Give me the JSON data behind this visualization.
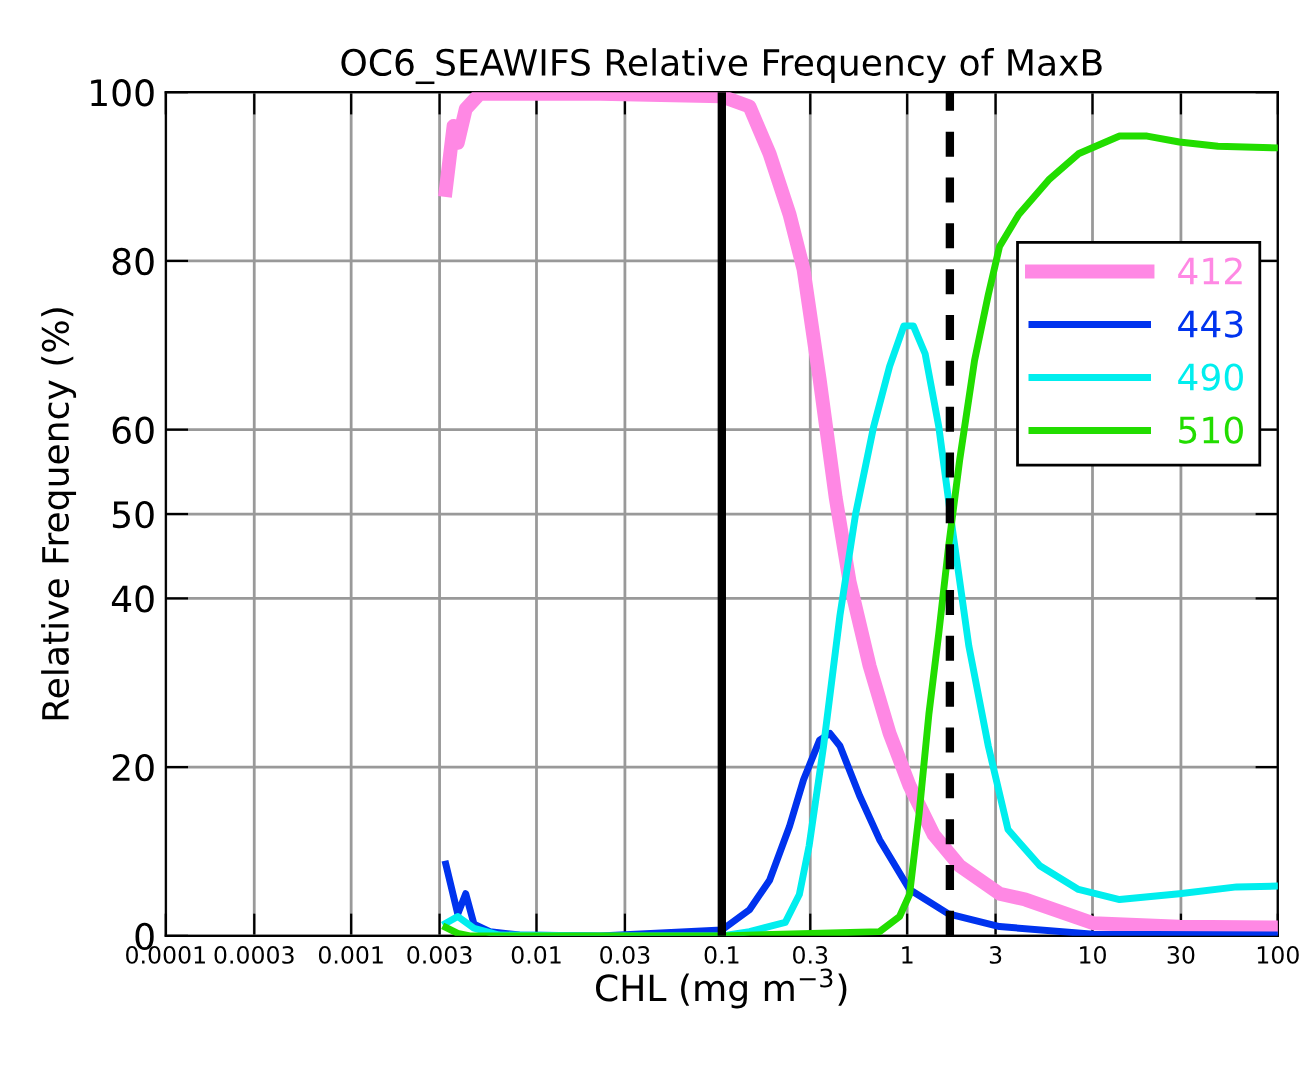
{
  "chart_data": {
    "type": "line",
    "title": "OC6_SEAWIFS Relative Frequency of MaxB",
    "xlabel": "CHL (mg m$^{−3}$)",
    "ylabel": "Relative Frequency (%)",
    "log": "x",
    "xlim": [
      0.0001,
      100
    ],
    "xticks": [
      0.0001,
      0.0003,
      0.001,
      0.003,
      0.01,
      0.03,
      0.1,
      0.3,
      1,
      3,
      10,
      30,
      100
    ],
    "ylim": [
      0,
      100
    ],
    "yticks": [
      0,
      20,
      40,
      50,
      60,
      80,
      100
    ],
    "grid": true,
    "legend": "right",
    "line_style": "solid",
    "ref_lines": [
      {
        "axis": "x",
        "value": 0.1,
        "color": "#000000",
        "line_style": "solid"
      },
      {
        "axis": "x",
        "value": 1.7,
        "color": "#000000",
        "line_style": "dashed"
      }
    ],
    "series": [
      {
        "name": "412",
        "color": "#ff88e4",
        "x": [
          0.00324,
          0.00357,
          0.00376,
          0.00415,
          0.00494,
          0.0063,
          0.022,
          0.1,
          0.141,
          0.181,
          0.232,
          0.276,
          0.337,
          0.411,
          0.489,
          0.627,
          0.804,
          1.03,
          1.39,
          1.92,
          3.15,
          4.35,
          10.1,
          29.4,
          100
        ],
        "values": [
          88.4,
          96,
          94,
          98,
          99.8,
          99.8,
          99.8,
          99.5,
          98.3,
          92.7,
          85.5,
          79,
          66,
          52,
          42,
          32,
          24,
          17.8,
          12,
          8.3,
          5,
          4.3,
          1.5,
          1.1,
          1.0
        ]
      },
      {
        "name": "443",
        "color": "#0033ee",
        "x": [
          0.00324,
          0.00376,
          0.00415,
          0.0046,
          0.0056,
          0.0081,
          0.022,
          0.1,
          0.141,
          0.181,
          0.232,
          0.276,
          0.337,
          0.383,
          0.434,
          0.554,
          0.71,
          1.03,
          1.67,
          3.15,
          10.1,
          100
        ],
        "values": [
          8.5,
          2.6,
          5,
          1.4,
          0.5,
          0.1,
          0,
          0.7,
          3.1,
          6.6,
          13,
          18.5,
          23.2,
          24,
          22.5,
          16.6,
          11.4,
          5.5,
          2.6,
          1.1,
          0.2,
          0.1
        ]
      },
      {
        "name": "490",
        "color": "#00eeee",
        "x": [
          0.00324,
          0.00376,
          0.0046,
          0.0063,
          0.022,
          0.1,
          0.141,
          0.22,
          0.262,
          0.296,
          0.354,
          0.434,
          0.527,
          0.66,
          0.804,
          0.96,
          1.08,
          1.25,
          1.48,
          1.77,
          2.15,
          2.74,
          3.5,
          5.2,
          8.4,
          14,
          29.4,
          60,
          100
        ],
        "values": [
          1.5,
          2.3,
          0.9,
          0.1,
          0,
          0,
          0.5,
          1.6,
          4.9,
          10.7,
          22.5,
          38,
          50,
          60.4,
          67.5,
          72.3,
          72.3,
          69,
          60.4,
          47.6,
          34.4,
          22.5,
          12.6,
          8.3,
          5.5,
          4.3,
          5,
          5.8,
          5.9
        ]
      },
      {
        "name": "510",
        "color": "#22dd00",
        "x": [
          0.00324,
          0.00376,
          0.00437,
          0.022,
          0.1,
          0.71,
          0.91,
          1.03,
          1.16,
          1.31,
          1.48,
          1.67,
          1.92,
          2.31,
          2.74,
          3.15,
          4.0,
          5.8,
          8.4,
          14,
          19.7,
          29.4,
          47.5,
          100
        ],
        "values": [
          1.0,
          0.3,
          0,
          0,
          0,
          0.5,
          2.3,
          4.9,
          14.5,
          26.3,
          35.8,
          46,
          56.4,
          68.2,
          76,
          81.7,
          85.5,
          89.6,
          92.7,
          94.8,
          94.8,
          94.1,
          93.6,
          93.4
        ]
      }
    ]
  }
}
